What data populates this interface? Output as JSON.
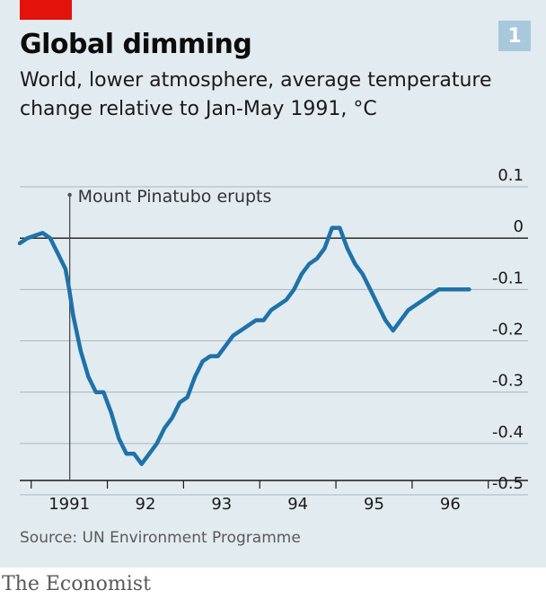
{
  "header": {
    "title": "Global dimming",
    "badge": "1",
    "subtitle": "World, lower atmosphere, average temperature change relative to Jan-May 1991, °C"
  },
  "footer": {
    "source": "Source: UN Environment Programme",
    "brand": "The Economist"
  },
  "colors": {
    "background": "#e2ebf0",
    "line": "#1f72a8",
    "brand_red": "#e3120b",
    "badge": "#a8c8db"
  },
  "chart_data": {
    "type": "line",
    "title": "Global dimming",
    "subtitle": "World, lower atmosphere, average temperature change relative to Jan-May 1991, °C",
    "xlabel": "",
    "ylabel": "",
    "x_tick_labels": [
      "1991",
      "92",
      "93",
      "94",
      "95",
      "96"
    ],
    "y_ticks": [
      0.1,
      0,
      -0.1,
      -0.2,
      -0.3,
      -0.4,
      -0.5
    ],
    "y_tick_labels": [
      "0.1",
      "0",
      "-0.1",
      "-0.2",
      "-0.3",
      "-0.4",
      "-0.5"
    ],
    "ylim": [
      -0.5,
      0.1
    ],
    "xlim": [
      1990.8,
      1997.0
    ],
    "grid": true,
    "annotations": [
      {
        "text": "Mount Pinatubo erupts",
        "x": 1991.45
      }
    ],
    "series": [
      {
        "x": [
          1990.8,
          1990.9,
          1991.0,
          1991.1,
          1991.2,
          1991.3,
          1991.4,
          1991.45,
          1991.5,
          1991.6,
          1991.7,
          1991.8,
          1991.9,
          1992.0,
          1992.1,
          1992.2,
          1992.3,
          1992.4,
          1992.5,
          1992.6,
          1992.7,
          1992.8,
          1992.9,
          1993.0,
          1993.1,
          1993.2,
          1993.3,
          1993.4,
          1993.5,
          1993.6,
          1993.7,
          1993.8,
          1993.9,
          1994.0,
          1994.1,
          1994.2,
          1994.3,
          1994.4,
          1994.5,
          1994.6,
          1994.7,
          1994.8,
          1994.9,
          1995.0,
          1995.1,
          1995.2,
          1995.3,
          1995.4,
          1995.5,
          1995.6,
          1995.7,
          1995.8,
          1995.9,
          1996.0,
          1996.1,
          1996.2,
          1996.3,
          1996.4,
          1996.5,
          1996.6,
          1996.7
        ],
        "values": [
          -0.01,
          0.0,
          0.005,
          0.01,
          0.0,
          -0.03,
          -0.06,
          -0.1,
          -0.15,
          -0.22,
          -0.27,
          -0.3,
          -0.3,
          -0.34,
          -0.39,
          -0.42,
          -0.42,
          -0.44,
          -0.42,
          -0.4,
          -0.37,
          -0.35,
          -0.32,
          -0.31,
          -0.27,
          -0.24,
          -0.23,
          -0.23,
          -0.21,
          -0.19,
          -0.18,
          -0.17,
          -0.16,
          -0.16,
          -0.14,
          -0.13,
          -0.12,
          -0.1,
          -0.07,
          -0.05,
          -0.04,
          -0.02,
          0.02,
          0.02,
          -0.02,
          -0.05,
          -0.07,
          -0.1,
          -0.13,
          -0.16,
          -0.18,
          -0.16,
          -0.14,
          -0.13,
          -0.12,
          -0.11,
          -0.1,
          -0.1,
          -0.1,
          -0.1,
          -0.1
        ]
      }
    ]
  }
}
